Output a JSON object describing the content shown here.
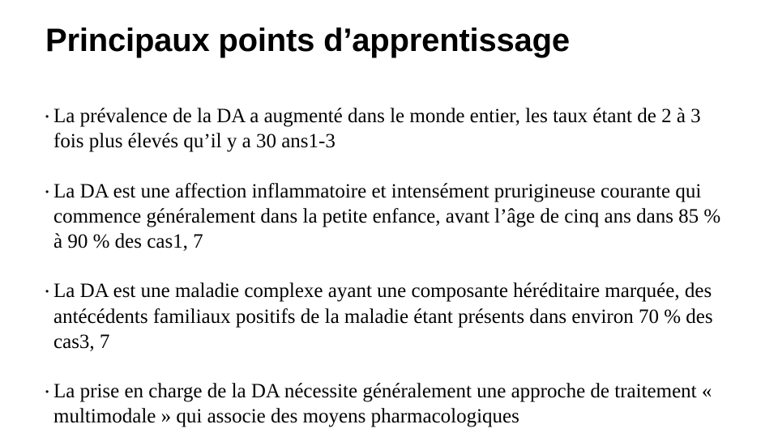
{
  "colors": {
    "background": "#ffffff",
    "text": "#000000"
  },
  "typography": {
    "title_font": "Arial Narrow",
    "title_weight": 700,
    "title_size_pt": 30,
    "body_font": "Times New Roman",
    "body_size_pt": 19
  },
  "slide": {
    "title": "Principaux points d’apprentissage",
    "bullets": [
      "La prévalence de la DA a augmenté dans le monde entier, les taux étant de 2 à 3 fois plus élevés qu’il y a 30 ans1-3",
      "La DA est une affection inflammatoire et intensément prurigineuse courante qui commence généralement dans la petite enfance, avant l’âge de cinq ans dans 85 % à 90 % des cas1, 7",
      "La DA est une maladie complexe ayant une composante héréditaire marquée, des antécédents familiaux positifs de la maladie étant présents dans environ 70 % des cas3, 7",
      "La prise en charge de la DA nécessite généralement une approche de traitement « multimodale » qui associe des moyens pharmacologiques"
    ]
  }
}
